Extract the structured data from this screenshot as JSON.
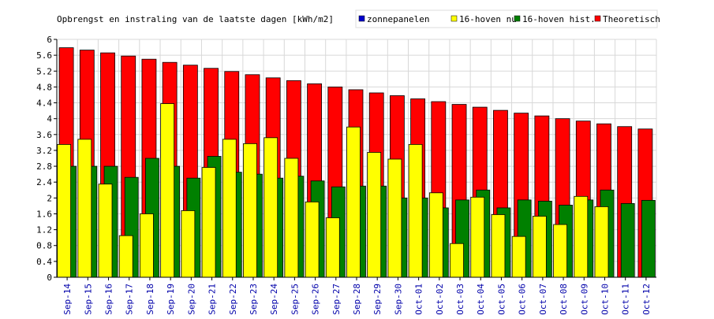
{
  "chart_data": {
    "type": "bar",
    "title": "Opbrengst en instraling van de laatste dagen [kWh/m2]",
    "xlabel": "",
    "ylabel": "",
    "ylim": [
      0,
      6
    ],
    "yticks": [
      "0",
      "0.4",
      "0.8",
      "1.2",
      "1.6",
      "2",
      "2.4",
      "2.8",
      "3.2",
      "3.6",
      "4",
      "4.4",
      "4.8",
      "5.2",
      "5.6",
      "6"
    ],
    "grid": true,
    "legend_position": "top-right",
    "categories": [
      "Sep-14",
      "Sep-15",
      "Sep-16",
      "Sep-17",
      "Sep-18",
      "Sep-19",
      "Sep-20",
      "Sep-21",
      "Sep-22",
      "Sep-23",
      "Sep-24",
      "Sep-25",
      "Sep-26",
      "Sep-27",
      "Sep-28",
      "Sep-29",
      "Sep-30",
      "Oct-01",
      "Oct-02",
      "Oct-03",
      "Oct-04",
      "Oct-05",
      "Oct-06",
      "Oct-07",
      "Oct-08",
      "Oct-09",
      "Oct-10",
      "Oct-11",
      "Oct-12"
    ],
    "series": [
      {
        "name": "zonnepanelen",
        "color": "#0000cc",
        "values": [
          0,
          0,
          0,
          0,
          0,
          0,
          0,
          0,
          0,
          0,
          0,
          0,
          0,
          0,
          0,
          0,
          0,
          0,
          0,
          0,
          0,
          0,
          0,
          0,
          0,
          0,
          0,
          0,
          0
        ]
      },
      {
        "name": "Theoretisch",
        "color": "#ff0000",
        "values": [
          5.79,
          5.73,
          5.66,
          5.58,
          5.5,
          5.42,
          5.35,
          5.27,
          5.19,
          5.11,
          5.03,
          4.96,
          4.88,
          4.8,
          4.73,
          4.65,
          4.58,
          4.5,
          4.43,
          4.36,
          4.29,
          4.21,
          4.14,
          4.07,
          4.0,
          3.94,
          3.87,
          3.8,
          3.74
        ]
      },
      {
        "name": "16-hoven hist.",
        "color": "#008000",
        "values": [
          2.8,
          2.8,
          2.8,
          2.52,
          3.0,
          2.8,
          2.5,
          3.05,
          2.65,
          2.6,
          2.5,
          2.55,
          2.43,
          2.28,
          2.3,
          2.3,
          2.0,
          2.0,
          1.75,
          1.95,
          2.2,
          1.75,
          1.95,
          1.92,
          1.82,
          1.95,
          2.2,
          1.86,
          1.94
        ]
      },
      {
        "name": "16-hoven nu",
        "color": "#ffff00",
        "values": [
          3.35,
          3.48,
          2.35,
          1.05,
          1.6,
          4.38,
          1.68,
          2.77,
          3.48,
          3.37,
          3.52,
          3.0,
          1.9,
          1.5,
          3.79,
          3.15,
          2.98,
          3.35,
          2.13,
          0.85,
          2.02,
          1.58,
          1.03,
          1.54,
          1.33,
          2.04,
          1.78,
          0,
          0
        ]
      }
    ],
    "legend": [
      {
        "label": "zonnepanelen",
        "color": "#0000cc"
      },
      {
        "label": "16-hoven nu",
        "color": "#ffff00"
      },
      {
        "label": "16-hoven hist.",
        "color": "#008000"
      },
      {
        "label": "Theoretisch",
        "color": "#ff0000"
      }
    ]
  }
}
